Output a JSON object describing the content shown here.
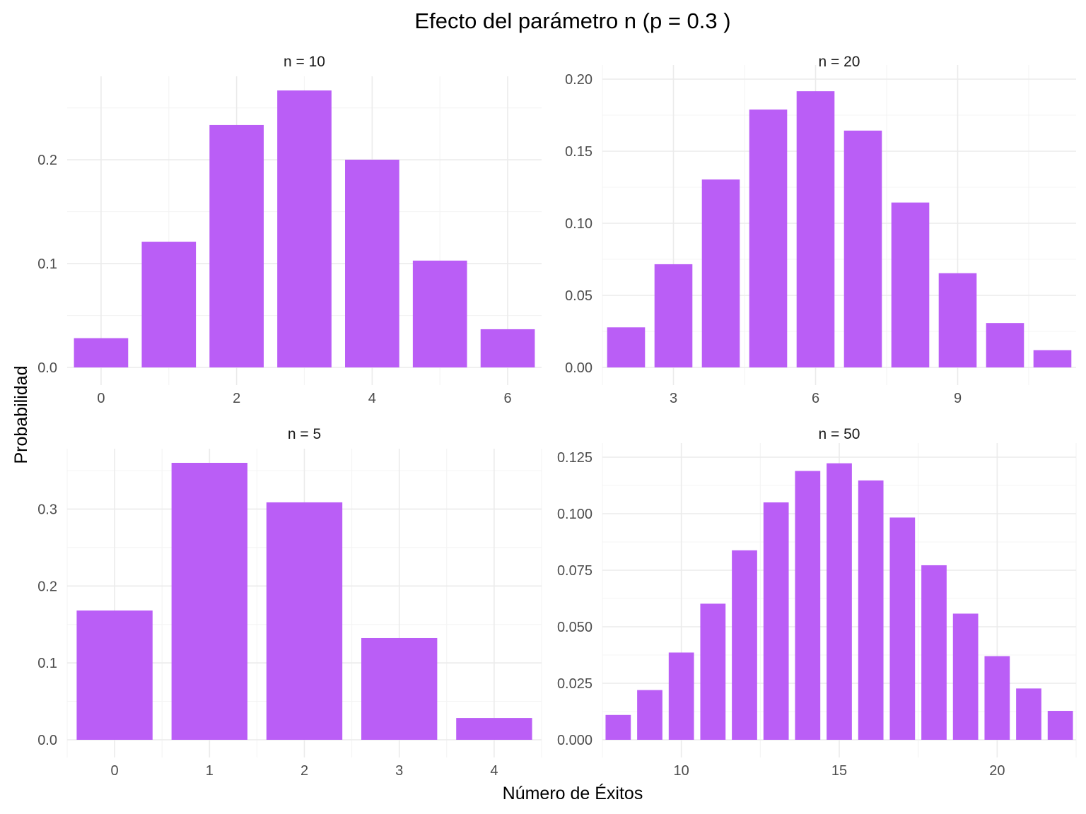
{
  "title": "Efecto del parámetro n (p = 0.3 )",
  "xlabel": "Número de Éxitos",
  "ylabel": "Probabilidad",
  "bar_color": "#BA5EF6",
  "chart_data": [
    {
      "type": "bar",
      "facet_label": "n = 10",
      "x": [
        0,
        1,
        2,
        3,
        4,
        5,
        6
      ],
      "values": [
        0.0282,
        0.1211,
        0.2335,
        0.2668,
        0.2001,
        0.1029,
        0.0368
      ],
      "xlim": [
        -0.5,
        6.5
      ],
      "ylim": [
        0,
        0.2668
      ],
      "x_ticks": [
        0,
        2,
        4,
        6
      ],
      "y_ticks": [
        0.0,
        0.1,
        0.2
      ],
      "y_tick_labels": [
        "0.0",
        "0.1",
        "0.2"
      ],
      "grid": true
    },
    {
      "type": "bar",
      "facet_label": "n = 20",
      "x": [
        2,
        3,
        4,
        5,
        6,
        7,
        8,
        9,
        10,
        11
      ],
      "values": [
        0.0278,
        0.0716,
        0.1304,
        0.1789,
        0.1916,
        0.1643,
        0.1144,
        0.0654,
        0.0308,
        0.012
      ],
      "xlim": [
        1.5,
        11.5
      ],
      "ylim": [
        0,
        0.2
      ],
      "x_ticks": [
        3,
        6,
        9
      ],
      "y_ticks": [
        0.0,
        0.05,
        0.1,
        0.15,
        0.2
      ],
      "y_tick_labels": [
        "0.00",
        "0.05",
        "0.10",
        "0.15",
        "0.20"
      ],
      "grid": true
    },
    {
      "type": "bar",
      "facet_label": "n = 5",
      "x": [
        0,
        1,
        2,
        3,
        4
      ],
      "values": [
        0.1681,
        0.3601,
        0.3087,
        0.1323,
        0.0284
      ],
      "xlim": [
        -0.5,
        4.5
      ],
      "ylim": [
        0,
        0.3601
      ],
      "x_ticks": [
        0,
        1,
        2,
        3,
        4
      ],
      "y_ticks": [
        0.0,
        0.1,
        0.2,
        0.3
      ],
      "y_tick_labels": [
        "0.0",
        "0.1",
        "0.2",
        "0.3"
      ],
      "grid": true
    },
    {
      "type": "bar",
      "facet_label": "n = 50",
      "x": [
        8,
        9,
        10,
        11,
        12,
        13,
        14,
        15,
        16,
        17,
        18,
        19,
        20,
        21,
        22
      ],
      "values": [
        0.011,
        0.022,
        0.0386,
        0.0602,
        0.0838,
        0.105,
        0.1189,
        0.1223,
        0.1147,
        0.0983,
        0.0772,
        0.0558,
        0.037,
        0.0227,
        0.0128
      ],
      "xlim": [
        7.5,
        22.5
      ],
      "ylim": [
        0,
        0.125
      ],
      "x_ticks": [
        10,
        15,
        20
      ],
      "y_ticks": [
        0.0,
        0.025,
        0.05,
        0.075,
        0.1,
        0.125
      ],
      "y_tick_labels": [
        "0.000",
        "0.025",
        "0.050",
        "0.075",
        "0.100",
        "0.125"
      ],
      "grid": true
    }
  ]
}
